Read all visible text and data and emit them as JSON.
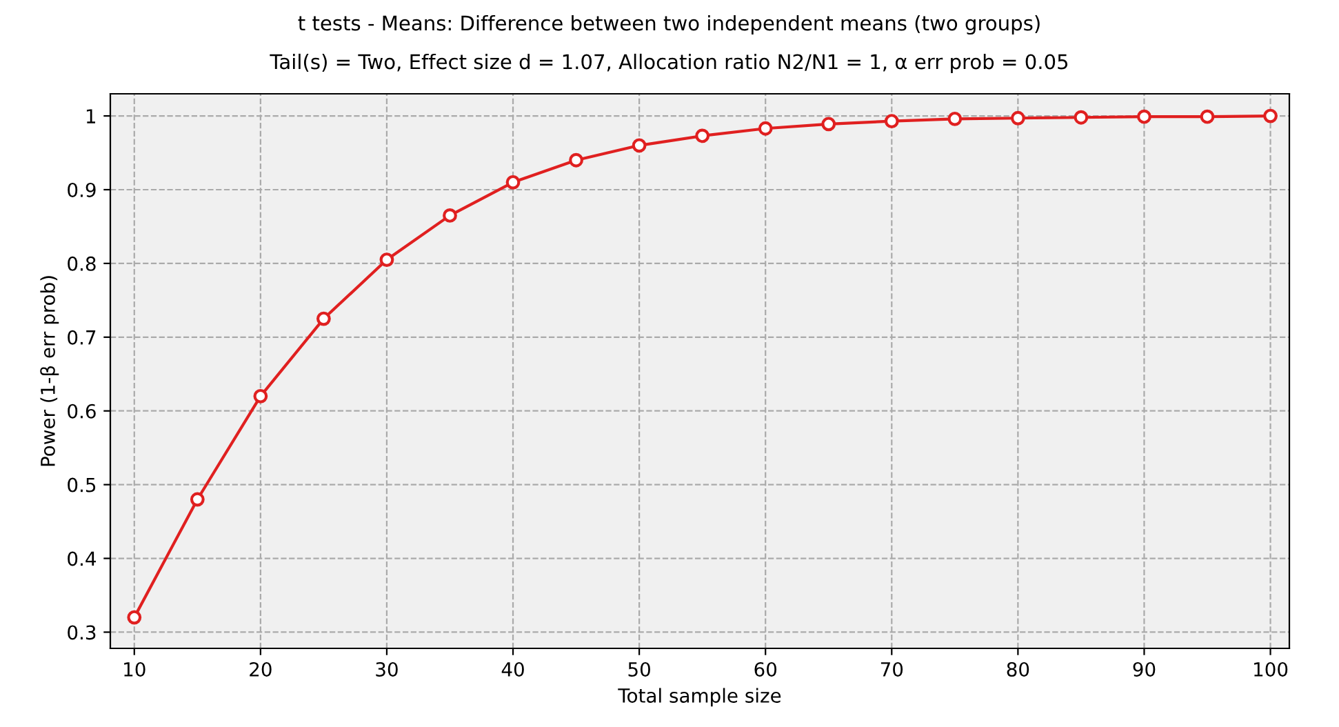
{
  "chart_data": {
    "type": "line",
    "title": "t tests - Means: Difference between two independent means (two groups)",
    "subtitle": "Tail(s) = Two, Effect size d = 1.07, Allocation ratio N2/N1 = 1, α err prob = 0.05",
    "xlabel": "Total sample size",
    "ylabel": "Power (1-β err prob)",
    "x": [
      10,
      15,
      20,
      25,
      30,
      35,
      40,
      45,
      50,
      55,
      60,
      65,
      70,
      75,
      80,
      85,
      90,
      95,
      100
    ],
    "series": [
      {
        "color": "#e02020",
        "values": [
          0.32,
          0.48,
          0.62,
          0.725,
          0.805,
          0.865,
          0.91,
          0.94,
          0.96,
          0.973,
          0.983,
          0.989,
          0.993,
          0.996,
          0.997,
          0.998,
          0.999,
          0.999,
          1.0
        ]
      }
    ],
    "xlim": [
      8.1,
      101.5
    ],
    "ylim": [
      0.278,
      1.03
    ],
    "xticks": [
      10,
      20,
      30,
      40,
      50,
      60,
      70,
      80,
      90,
      100
    ],
    "yticks": [
      0.3,
      0.4,
      0.5,
      0.6,
      0.7,
      0.8,
      0.9,
      1
    ],
    "grid": true,
    "marker": "circle",
    "line_style": "solid",
    "legend": false
  }
}
